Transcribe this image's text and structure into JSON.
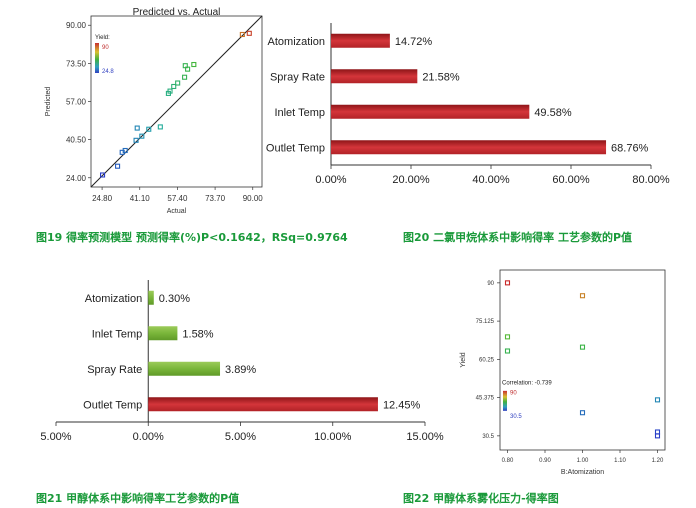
{
  "chart_data": [
    {
      "id": "fig19",
      "type": "scatter",
      "title": "Predicted vs. Actual",
      "xlabel": "Actual",
      "ylabel": "Predicted",
      "xlim": [
        20.0,
        94.0
      ],
      "ylim": [
        20.0,
        94.0
      ],
      "xticks": [
        "24.80",
        "41.10",
        "57.40",
        "73.70",
        "90.00"
      ],
      "yticks": [
        "24.00",
        "40.50",
        "57.00",
        "73.50",
        "90.00"
      ],
      "legend": {
        "title": "Yield:",
        "high": "90",
        "low": "24.8",
        "position": "top-left"
      },
      "grid": false,
      "reference_line": [
        [
          20.0,
          20.0
        ],
        [
          94.0,
          94.0
        ]
      ],
      "points": [
        [
          25.0,
          25.2
        ],
        [
          31.5,
          29.0
        ],
        [
          33.5,
          35.0
        ],
        [
          34.8,
          35.8
        ],
        [
          39.5,
          40.2
        ],
        [
          40.0,
          45.5
        ],
        [
          42.0,
          42.0
        ],
        [
          45.0,
          45.0
        ],
        [
          50.0,
          46.0
        ],
        [
          53.5,
          60.5
        ],
        [
          54.2,
          61.5
        ],
        [
          55.8,
          63.5
        ],
        [
          57.5,
          65.0
        ],
        [
          60.5,
          67.5
        ],
        [
          60.8,
          72.5
        ],
        [
          61.8,
          71.0
        ],
        [
          64.5,
          73.0
        ],
        [
          85.5,
          86.0
        ],
        [
          88.5,
          86.5
        ]
      ],
      "caption": "图19 得率预测模型   预测得率(%)P<0.1642，RSq=0.9764"
    },
    {
      "id": "fig20",
      "type": "bar",
      "orientation": "horizontal",
      "categories": [
        "Atomization",
        "Spray Rate",
        "Inlet Temp",
        "Outlet Temp"
      ],
      "values": [
        14.72,
        21.58,
        49.58,
        68.76
      ],
      "value_labels": [
        "14.72%",
        "21.58%",
        "49.58%",
        "68.76%"
      ],
      "xticks": [
        "0.00%",
        "20.00%",
        "40.00%",
        "60.00%",
        "80.00%"
      ],
      "xlim": [
        0,
        80
      ],
      "bar_color": "#c0262a",
      "caption": "图20  二氯甲烷体系中影响得率 工艺参数的P值"
    },
    {
      "id": "fig21",
      "type": "bar",
      "orientation": "horizontal",
      "categories": [
        "Atomization",
        "Inlet Temp",
        "Spray Rate",
        "Outlet Temp"
      ],
      "values": [
        0.3,
        1.58,
        3.89,
        12.45
      ],
      "value_labels": [
        "0.30%",
        "1.58%",
        "3.89%",
        "12.45%"
      ],
      "bar_colors": [
        "#7ab63a",
        "#7ab63a",
        "#7ab63a",
        "#c0262a"
      ],
      "xticks": [
        "5.00%",
        "0.00%",
        "5.00%",
        "10.00%",
        "15.00%"
      ],
      "xlim": [
        -5,
        15
      ],
      "caption": "图21  甲醇体系中影响得率工艺参数的P值"
    },
    {
      "id": "fig22",
      "type": "scatter",
      "xlabel": "B:Atomization",
      "ylabel": "Yield",
      "xlim": [
        0.78,
        1.22
      ],
      "ylim": [
        25.0,
        95.0
      ],
      "xticks": [
        "0.80",
        "0.90",
        "1.00",
        "1.10",
        "1.20"
      ],
      "yticks": [
        "30.5",
        "45.375",
        "60.25",
        "75.125",
        "90"
      ],
      "annotation": "Correlation: -0.739",
      "legend": {
        "high": "90",
        "low": "30.5",
        "position": "bottom-left"
      },
      "points": [
        [
          0.8,
          90.0
        ],
        [
          0.8,
          69.0
        ],
        [
          0.8,
          63.5
        ],
        [
          1.0,
          85.0
        ],
        [
          1.0,
          65.0
        ],
        [
          1.0,
          39.5
        ],
        [
          1.2,
          44.5
        ],
        [
          1.2,
          32.0
        ],
        [
          1.2,
          30.5
        ]
      ],
      "caption": "图22  甲醇体系雾化压力-得率图"
    }
  ]
}
